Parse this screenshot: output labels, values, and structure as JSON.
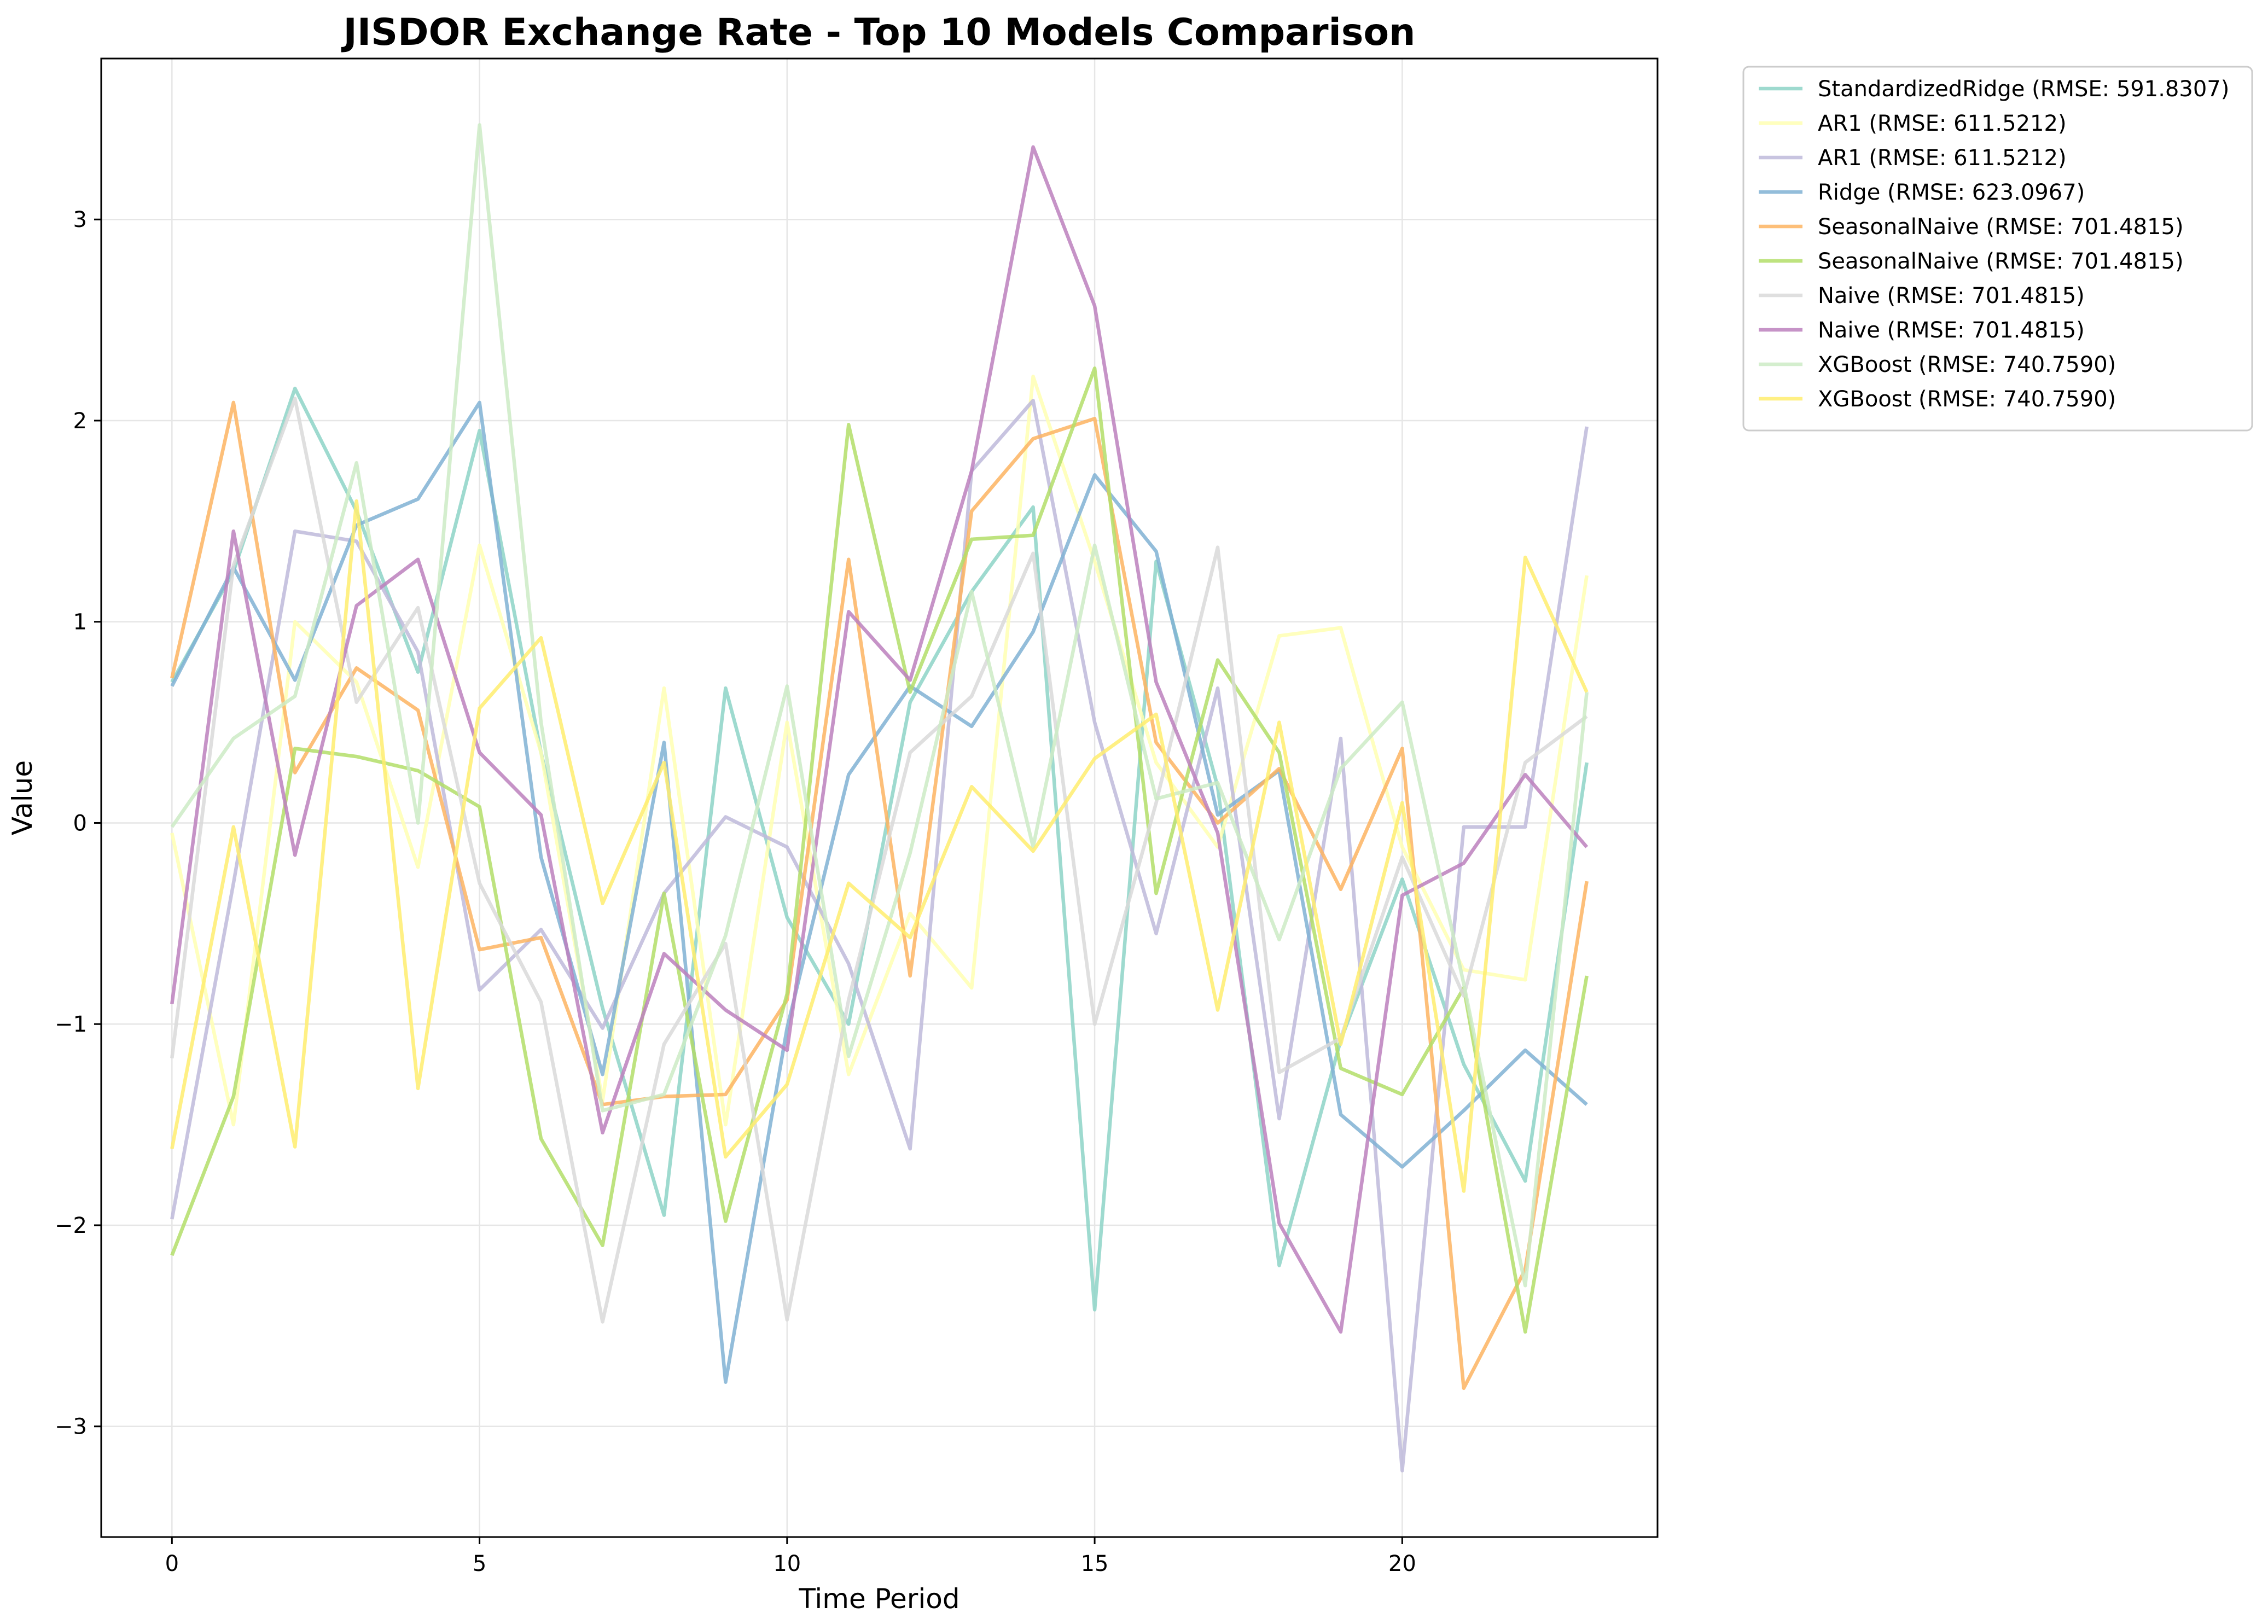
{
  "chart_data": {
    "type": "line",
    "title": "JISDOR Exchange Rate - Top 10 Models Comparison",
    "xlabel": "Time Period",
    "ylabel": "Value",
    "xlim": [
      -1.15,
      24.15
    ],
    "ylim": [
      -3.55,
      3.8
    ],
    "xticks": [
      0,
      5,
      10,
      15,
      20
    ],
    "yticks": [
      -3,
      -2,
      -1,
      0,
      1,
      2,
      3
    ],
    "ytick_labels": [
      "−3",
      "−2",
      "−1",
      "0",
      "1",
      "2",
      "3"
    ],
    "grid": true,
    "legend_position": "outside-top-right",
    "x": [
      0,
      1,
      2,
      3,
      4,
      5,
      6,
      7,
      8,
      9,
      10,
      11,
      12,
      13,
      14,
      15,
      16,
      17,
      18,
      19,
      20,
      21,
      22,
      23
    ],
    "series": [
      {
        "name": "StandardizedRidge (RMSE: 591.8307)",
        "color": "#8dd3c7",
        "values": [
          0.7,
          1.25,
          2.16,
          1.55,
          0.75,
          1.95,
          0.35,
          -0.92,
          -1.95,
          0.67,
          -0.47,
          -1.0,
          0.6,
          1.15,
          1.57,
          -2.42,
          1.3,
          0.18,
          -2.2,
          -1.08,
          -0.28,
          -1.2,
          -1.78,
          0.3
        ]
      },
      {
        "name": "AR1 (RMSE: 611.5212)",
        "color": "#ffffb3",
        "values": [
          -0.05,
          -1.5,
          1.0,
          0.7,
          -0.22,
          1.38,
          0.35,
          -1.38,
          0.67,
          -1.5,
          0.5,
          -1.25,
          -0.45,
          -0.82,
          2.22,
          1.3,
          0.3,
          -0.12,
          0.93,
          0.97,
          -0.12,
          -0.73,
          -0.78,
          1.23
        ]
      },
      {
        "name": "AR1 (RMSE: 611.5212)",
        "color": "#bebada",
        "values": [
          -1.97,
          -0.3,
          1.45,
          1.4,
          0.85,
          -0.83,
          -0.53,
          -1.02,
          -0.35,
          0.03,
          -0.12,
          -0.7,
          -1.62,
          1.75,
          2.1,
          0.5,
          -0.55,
          0.67,
          -1.47,
          0.42,
          -3.22,
          -0.02,
          -0.02,
          1.97
        ]
      },
      {
        "name": "Ridge (RMSE: 623.0967)",
        "color": "#80b1d3",
        "values": [
          0.68,
          1.27,
          0.71,
          1.48,
          1.61,
          2.09,
          -0.17,
          -1.25,
          0.4,
          -2.78,
          -1.02,
          0.24,
          0.68,
          0.48,
          0.95,
          1.73,
          1.35,
          0.04,
          0.26,
          -1.45,
          -1.71,
          -1.43,
          -1.13,
          -1.4
        ]
      },
      {
        "name": "SeasonalNaive (RMSE: 701.4815)",
        "color": "#fdb462",
        "values": [
          0.72,
          2.09,
          0.25,
          0.77,
          0.56,
          -0.63,
          -0.57,
          -1.4,
          -1.36,
          -1.35,
          -0.88,
          1.31,
          -0.76,
          1.55,
          1.91,
          2.01,
          0.4,
          0.0,
          0.27,
          -0.33,
          0.37,
          -2.81,
          -2.22,
          -0.29
        ]
      },
      {
        "name": "SeasonalNaive (RMSE: 701.4815)",
        "color": "#b3de69",
        "values": [
          -2.15,
          -1.36,
          0.37,
          0.33,
          0.26,
          0.08,
          -1.57,
          -2.1,
          -0.35,
          -1.98,
          -0.85,
          1.98,
          0.65,
          1.41,
          1.43,
          2.26,
          -0.35,
          0.81,
          0.35,
          -1.22,
          -1.35,
          -0.82,
          -2.53,
          -0.76
        ]
      },
      {
        "name": "Naive (RMSE: 701.4815)",
        "color": "#d9d9d9",
        "values": [
          -1.17,
          1.28,
          2.11,
          0.6,
          1.07,
          -0.3,
          -0.89,
          -2.48,
          -1.1,
          -0.6,
          -2.47,
          -0.88,
          0.35,
          0.63,
          1.34,
          -1.0,
          0.1,
          1.37,
          -1.24,
          -1.07,
          -0.17,
          -0.86,
          0.3,
          0.53
        ]
      },
      {
        "name": "Naive (RMSE: 701.4815)",
        "color": "#bc80bd",
        "values": [
          -0.9,
          1.45,
          -0.16,
          1.08,
          1.31,
          0.35,
          0.04,
          -1.54,
          -0.65,
          -0.93,
          -1.13,
          1.05,
          0.71,
          1.75,
          3.36,
          2.57,
          0.7,
          -0.05,
          -1.99,
          -2.53,
          -0.36,
          -0.2,
          0.24,
          -0.12
        ]
      },
      {
        "name": "XGBoost (RMSE: 740.7590)",
        "color": "#ccebc5",
        "values": [
          -0.02,
          0.42,
          0.63,
          1.79,
          0.0,
          3.47,
          0.5,
          -1.43,
          -1.35,
          -0.56,
          0.68,
          -1.16,
          -0.15,
          1.15,
          -0.12,
          1.38,
          0.12,
          0.2,
          -0.58,
          0.27,
          0.6,
          -0.8,
          -2.3,
          0.65
        ]
      },
      {
        "name": "XGBoost (RMSE: 740.7590)",
        "color": "#ffed6f",
        "values": [
          -1.62,
          -0.02,
          -1.61,
          1.6,
          -1.32,
          0.57,
          0.92,
          -0.4,
          0.3,
          -1.66,
          -1.3,
          -0.3,
          -0.57,
          0.18,
          -0.14,
          0.32,
          0.54,
          -0.93,
          0.5,
          -1.1,
          0.1,
          -1.83,
          1.32,
          0.65
        ]
      }
    ]
  }
}
